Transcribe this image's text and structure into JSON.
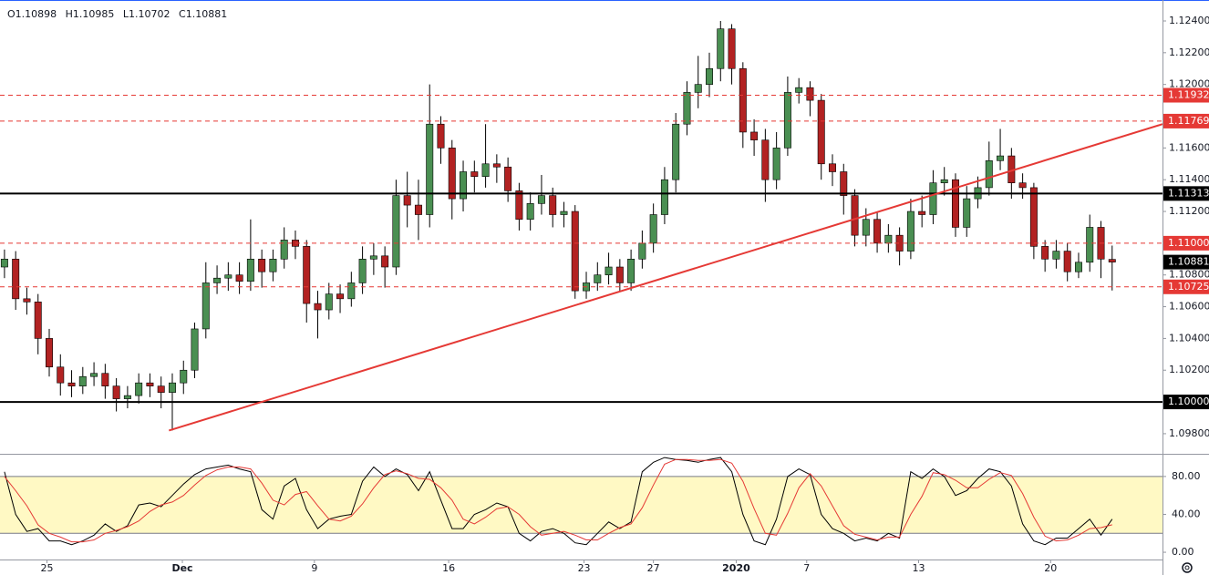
{
  "chart_data": [
    {
      "type": "candlestick",
      "ohlc_header": [
        "O1.10898",
        "H1.10985",
        "L1.10702",
        "C1.10881"
      ],
      "up_color": "#4a8f52",
      "down_color": "#b22222",
      "wick_color": "#000000",
      "xlim": [
        -0.4,
        103.5
      ],
      "xticks": [
        {
          "value": 3.8,
          "label": "25"
        },
        {
          "value": 15.9,
          "label": "Dec",
          "emphasis": true
        },
        {
          "value": 27.7,
          "label": "9"
        },
        {
          "value": 39.7,
          "label": "16"
        },
        {
          "value": 51.8,
          "label": "23"
        },
        {
          "value": 58,
          "label": "27"
        },
        {
          "value": 65.4,
          "label": "2020",
          "emphasis": true
        },
        {
          "value": 71.7,
          "label": "7"
        },
        {
          "value": 81.7,
          "label": "13"
        },
        {
          "value": 93.5,
          "label": "20"
        }
      ],
      "ylim": [
        1.09679,
        1.12532
      ],
      "yticks": [
        {
          "value": 1.098,
          "label": "1.09800"
        },
        {
          "value": 1.102,
          "label": "1.10200"
        },
        {
          "value": 1.104,
          "label": "1.10400"
        },
        {
          "value": 1.106,
          "label": "1.10600"
        },
        {
          "value": 1.108,
          "label": "1.10800"
        },
        {
          "value": 1.112,
          "label": "1.11200"
        },
        {
          "value": 1.114,
          "label": "1.11400"
        },
        {
          "value": 1.116,
          "label": "1.11600"
        },
        {
          "value": 1.12,
          "label": "1.12000"
        },
        {
          "value": 1.122,
          "label": "1.12200"
        },
        {
          "value": 1.124,
          "label": "1.12400"
        }
      ],
      "levels": [
        {
          "value": 1.11932,
          "label": "1.11932",
          "color": "#e53935",
          "style": "dashed"
        },
        {
          "value": 1.11769,
          "label": "1.11769",
          "color": "#e53935",
          "style": "dashed"
        },
        {
          "value": 1.11313,
          "label": "1.11313",
          "color": "#000000",
          "style": "solid"
        },
        {
          "value": 1.11,
          "label": "1.11000",
          "color": "#e53935",
          "style": "dashed"
        },
        {
          "value": 1.10725,
          "label": "1.10725",
          "color": "#e53935",
          "style": "dashed"
        },
        {
          "value": 1.1,
          "label": "1.10000",
          "color": "#000000",
          "style": "solid"
        }
      ],
      "last": {
        "value": 1.10881,
        "label": "1.10881",
        "color": "#000000"
      },
      "trendline": {
        "points": [
          [
            14.7,
            1.0982
          ],
          [
            103.5,
            1.1175
          ]
        ],
        "color": "#e53935"
      },
      "ohlc": [
        [
          1.1085,
          1.1096,
          1.1078,
          1.109
        ],
        [
          1.109,
          1.1095,
          1.1058,
          1.1065
        ],
        [
          1.1065,
          1.1072,
          1.1055,
          1.1063
        ],
        [
          1.1063,
          1.1068,
          1.103,
          1.104
        ],
        [
          1.104,
          1.1046,
          1.1016,
          1.1022
        ],
        [
          1.1022,
          1.103,
          1.1004,
          1.1012
        ],
        [
          1.1012,
          1.102,
          1.1003,
          1.101
        ],
        [
          1.101,
          1.1022,
          1.1005,
          1.1016
        ],
        [
          1.1016,
          1.1025,
          1.101,
          1.1018
        ],
        [
          1.1018,
          1.1024,
          1.1002,
          1.101
        ],
        [
          1.101,
          1.1015,
          1.0994,
          1.1002
        ],
        [
          1.1002,
          1.101,
          1.0996,
          1.1004
        ],
        [
          1.1004,
          1.1018,
          1.0999,
          1.1012
        ],
        [
          1.1012,
          1.1018,
          1.1003,
          1.101
        ],
        [
          1.101,
          1.1016,
          1.0996,
          1.1006
        ],
        [
          1.1006,
          1.1018,
          1.0982,
          1.1012
        ],
        [
          1.1012,
          1.1026,
          1.1005,
          1.102
        ],
        [
          1.102,
          1.105,
          1.1015,
          1.1046
        ],
        [
          1.1046,
          1.1088,
          1.104,
          1.1075
        ],
        [
          1.1075,
          1.1086,
          1.1068,
          1.1078
        ],
        [
          1.1078,
          1.1088,
          1.107,
          1.108
        ],
        [
          1.108,
          1.1088,
          1.1068,
          1.1076
        ],
        [
          1.1076,
          1.1115,
          1.107,
          1.109
        ],
        [
          1.109,
          1.1096,
          1.1072,
          1.1082
        ],
        [
          1.1082,
          1.1096,
          1.1076,
          1.109
        ],
        [
          1.109,
          1.111,
          1.1084,
          1.1102
        ],
        [
          1.1102,
          1.1108,
          1.109,
          1.1098
        ],
        [
          1.1098,
          1.1102,
          1.105,
          1.1062
        ],
        [
          1.1062,
          1.107,
          1.104,
          1.1058
        ],
        [
          1.1058,
          1.1075,
          1.1052,
          1.1068
        ],
        [
          1.1068,
          1.1074,
          1.1056,
          1.1065
        ],
        [
          1.1065,
          1.1082,
          1.106,
          1.1075
        ],
        [
          1.1075,
          1.1098,
          1.1068,
          1.109
        ],
        [
          1.109,
          1.11,
          1.108,
          1.1092
        ],
        [
          1.1092,
          1.1098,
          1.1072,
          1.1085
        ],
        [
          1.1085,
          1.114,
          1.108,
          1.113
        ],
        [
          1.113,
          1.1145,
          1.111,
          1.1124
        ],
        [
          1.1124,
          1.114,
          1.1102,
          1.1118
        ],
        [
          1.1118,
          1.12,
          1.111,
          1.1175
        ],
        [
          1.1175,
          1.118,
          1.115,
          1.116
        ],
        [
          1.116,
          1.1165,
          1.1115,
          1.1128
        ],
        [
          1.1128,
          1.1152,
          1.112,
          1.1145
        ],
        [
          1.1145,
          1.1152,
          1.1132,
          1.1142
        ],
        [
          1.1142,
          1.1175,
          1.1135,
          1.115
        ],
        [
          1.115,
          1.1156,
          1.1138,
          1.1148
        ],
        [
          1.1148,
          1.1154,
          1.1126,
          1.1133
        ],
        [
          1.1133,
          1.1138,
          1.1108,
          1.1115
        ],
        [
          1.1115,
          1.1132,
          1.1108,
          1.1125
        ],
        [
          1.1125,
          1.1143,
          1.1118,
          1.113
        ],
        [
          1.113,
          1.1135,
          1.111,
          1.1118
        ],
        [
          1.1118,
          1.1126,
          1.111,
          1.112
        ],
        [
          1.112,
          1.1124,
          1.1065,
          1.107
        ],
        [
          1.107,
          1.1082,
          1.1065,
          1.1075
        ],
        [
          1.1075,
          1.1088,
          1.107,
          1.108
        ],
        [
          1.108,
          1.1094,
          1.1074,
          1.1085
        ],
        [
          1.1085,
          1.109,
          1.107,
          1.1075
        ],
        [
          1.1075,
          1.1096,
          1.107,
          1.109
        ],
        [
          1.109,
          1.1108,
          1.1084,
          1.11
        ],
        [
          1.11,
          1.1125,
          1.1094,
          1.1118
        ],
        [
          1.1118,
          1.1148,
          1.1112,
          1.114
        ],
        [
          1.114,
          1.1182,
          1.1132,
          1.1175
        ],
        [
          1.1175,
          1.1202,
          1.1168,
          1.1195
        ],
        [
          1.1195,
          1.1218,
          1.1185,
          1.12
        ],
        [
          1.12,
          1.122,
          1.1192,
          1.121
        ],
        [
          1.121,
          1.124,
          1.1202,
          1.1235
        ],
        [
          1.1235,
          1.1238,
          1.12,
          1.121
        ],
        [
          1.121,
          1.1214,
          1.116,
          1.117
        ],
        [
          1.117,
          1.1178,
          1.1155,
          1.1165
        ],
        [
          1.1165,
          1.1172,
          1.1126,
          1.114
        ],
        [
          1.114,
          1.117,
          1.1134,
          1.116
        ],
        [
          1.116,
          1.1205,
          1.1155,
          1.1195
        ],
        [
          1.1195,
          1.1204,
          1.1188,
          1.1198
        ],
        [
          1.1198,
          1.1202,
          1.118,
          1.119
        ],
        [
          1.119,
          1.1194,
          1.114,
          1.115
        ],
        [
          1.115,
          1.1156,
          1.1136,
          1.1145
        ],
        [
          1.1145,
          1.115,
          1.1118,
          1.113
        ],
        [
          1.113,
          1.1134,
          1.1098,
          1.1105
        ],
        [
          1.1105,
          1.1122,
          1.1098,
          1.1115
        ],
        [
          1.1115,
          1.112,
          1.1094,
          1.11
        ],
        [
          1.11,
          1.1112,
          1.1094,
          1.1105
        ],
        [
          1.1105,
          1.111,
          1.1086,
          1.1095
        ],
        [
          1.1095,
          1.1128,
          1.109,
          1.112
        ],
        [
          1.112,
          1.113,
          1.111,
          1.1118
        ],
        [
          1.1118,
          1.1146,
          1.1112,
          1.1138
        ],
        [
          1.1138,
          1.1148,
          1.113,
          1.114
        ],
        [
          1.114,
          1.1144,
          1.1104,
          1.111
        ],
        [
          1.111,
          1.1136,
          1.1104,
          1.1128
        ],
        [
          1.1128,
          1.1142,
          1.1122,
          1.1135
        ],
        [
          1.1135,
          1.1164,
          1.113,
          1.1152
        ],
        [
          1.1152,
          1.1172,
          1.1146,
          1.1155
        ],
        [
          1.1155,
          1.116,
          1.1128,
          1.1138
        ],
        [
          1.1138,
          1.1144,
          1.1128,
          1.1135
        ],
        [
          1.1135,
          1.1138,
          1.109,
          1.1098
        ],
        [
          1.1098,
          1.1102,
          1.1082,
          1.109
        ],
        [
          1.109,
          1.1102,
          1.1084,
          1.1095
        ],
        [
          1.1095,
          1.11,
          1.1076,
          1.1082
        ],
        [
          1.1082,
          1.1094,
          1.1078,
          1.1088
        ],
        [
          1.1088,
          1.1118,
          1.1082,
          1.111
        ],
        [
          1.111,
          1.1114,
          1.1078,
          1.109
        ],
        [
          1.10898,
          1.10985,
          1.10702,
          1.10881
        ]
      ]
    },
    {
      "type": "line",
      "ylim": [
        -24,
        102
      ],
      "yticks": [
        {
          "value": 80,
          "label": "80.00"
        },
        {
          "value": 40,
          "label": "40.00"
        },
        {
          "value": 0,
          "label": "0.00"
        }
      ],
      "band": [
        20,
        80
      ],
      "band_color": "#fff9c4",
      "series": [
        {
          "color": "#000000",
          "values": [
            85,
            40,
            22,
            25,
            12,
            12,
            8,
            12,
            18,
            30,
            22,
            28,
            50,
            52,
            48,
            60,
            72,
            82,
            88,
            90,
            92,
            88,
            85,
            45,
            35,
            70,
            78,
            45,
            25,
            35,
            38,
            40,
            75,
            90,
            80,
            88,
            82,
            65,
            85,
            55,
            25,
            25,
            40,
            45,
            52,
            48,
            20,
            12,
            22,
            25,
            20,
            10,
            8,
            20,
            32,
            25,
            32,
            85,
            95,
            100,
            98,
            97,
            95,
            98,
            100,
            85,
            40,
            12,
            8,
            35,
            80,
            88,
            82,
            40,
            25,
            20,
            12,
            15,
            12,
            20,
            15,
            85,
            78,
            88,
            80,
            60,
            65,
            78,
            88,
            85,
            70,
            30,
            12,
            8,
            15,
            15,
            25,
            35,
            18,
            35
          ]
        },
        {
          "color": "#e53935",
          "values": [
            80,
            65,
            49,
            29,
            20,
            16,
            11,
            11,
            13,
            20,
            23,
            27,
            33,
            43,
            50,
            53,
            60,
            71,
            81,
            87,
            90,
            90,
            88,
            73,
            55,
            50,
            61,
            64,
            49,
            35,
            33,
            38,
            51,
            68,
            82,
            86,
            83,
            78,
            77,
            68,
            55,
            35,
            30,
            37,
            46,
            48,
            40,
            27,
            18,
            20,
            22,
            18,
            13,
            13,
            20,
            26,
            30,
            47,
            71,
            93,
            98,
            98,
            97,
            97,
            98,
            94,
            75,
            46,
            20,
            18,
            41,
            68,
            83,
            70,
            49,
            28,
            19,
            16,
            13,
            16,
            16,
            40,
            59,
            84,
            82,
            76,
            68,
            68,
            77,
            84,
            81,
            62,
            37,
            17,
            12,
            13,
            18,
            25,
            26,
            29
          ]
        }
      ]
    }
  ]
}
